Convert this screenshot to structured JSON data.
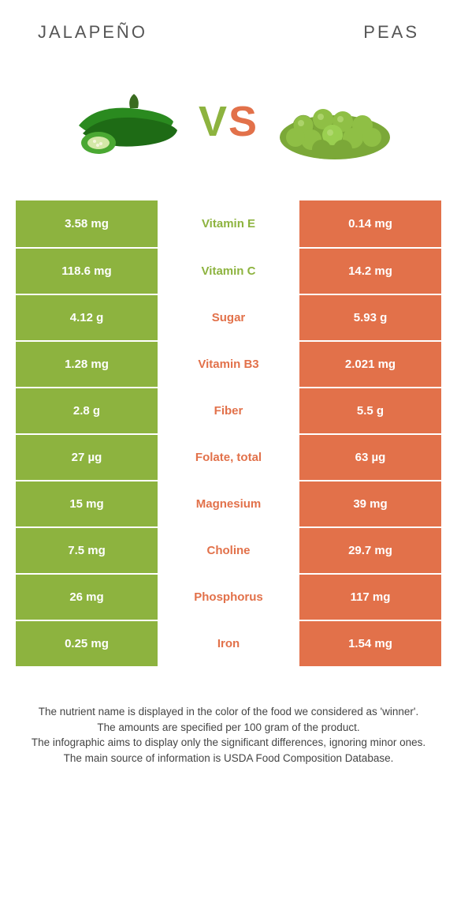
{
  "header": {
    "left": "JALAPEÑO",
    "right": "PEAS"
  },
  "vs": {
    "v": "V",
    "s": "S"
  },
  "colors": {
    "left": "#8db33f",
    "right": "#e2714a",
    "bg": "#ffffff"
  },
  "rows": [
    {
      "left": "3.58 mg",
      "label": "Vitamin E",
      "right": "0.14 mg",
      "winner": "left"
    },
    {
      "left": "118.6 mg",
      "label": "Vitamin C",
      "right": "14.2 mg",
      "winner": "left"
    },
    {
      "left": "4.12 g",
      "label": "Sugar",
      "right": "5.93 g",
      "winner": "right"
    },
    {
      "left": "1.28 mg",
      "label": "Vitamin B3",
      "right": "2.021 mg",
      "winner": "right"
    },
    {
      "left": "2.8 g",
      "label": "Fiber",
      "right": "5.5 g",
      "winner": "right"
    },
    {
      "left": "27 µg",
      "label": "Folate, total",
      "right": "63 µg",
      "winner": "right"
    },
    {
      "left": "15 mg",
      "label": "Magnesium",
      "right": "39 mg",
      "winner": "right"
    },
    {
      "left": "7.5 mg",
      "label": "Choline",
      "right": "29.7 mg",
      "winner": "right"
    },
    {
      "left": "26 mg",
      "label": "Phosphorus",
      "right": "117 mg",
      "winner": "right"
    },
    {
      "left": "0.25 mg",
      "label": "Iron",
      "right": "1.54 mg",
      "winner": "right"
    }
  ],
  "footer": {
    "l1": "The nutrient name is displayed in the color of the food we considered as 'winner'.",
    "l2": "The amounts are specified per 100 gram of the product.",
    "l3": "The infographic aims to display only the significant differences, ignoring minor ones.",
    "l4": "The main source of information is USDA Food Composition Database."
  }
}
